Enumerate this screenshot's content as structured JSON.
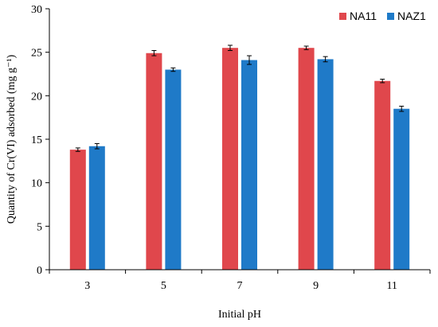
{
  "chart_data": {
    "type": "bar",
    "title": "",
    "xlabel": "Initial pH",
    "ylabel": "Quantity of Cr(VI) adsorbed (mg g⁻¹)",
    "categories": [
      "3",
      "5",
      "7",
      "9",
      "11"
    ],
    "ylim": [
      0,
      30
    ],
    "yticks": [
      0,
      5,
      10,
      15,
      20,
      25,
      30
    ],
    "grid": false,
    "legend_position": "top-right",
    "series": [
      {
        "name": "NA11",
        "color": "#e0474c",
        "values": [
          13.8,
          24.9,
          25.5,
          25.5,
          21.7
        ],
        "errors": [
          0.2,
          0.3,
          0.3,
          0.2,
          0.2
        ]
      },
      {
        "name": "NAZ1",
        "color": "#1f7ac8",
        "values": [
          14.2,
          23.0,
          24.1,
          24.2,
          18.5
        ],
        "errors": [
          0.3,
          0.2,
          0.5,
          0.3,
          0.3
        ]
      }
    ]
  }
}
